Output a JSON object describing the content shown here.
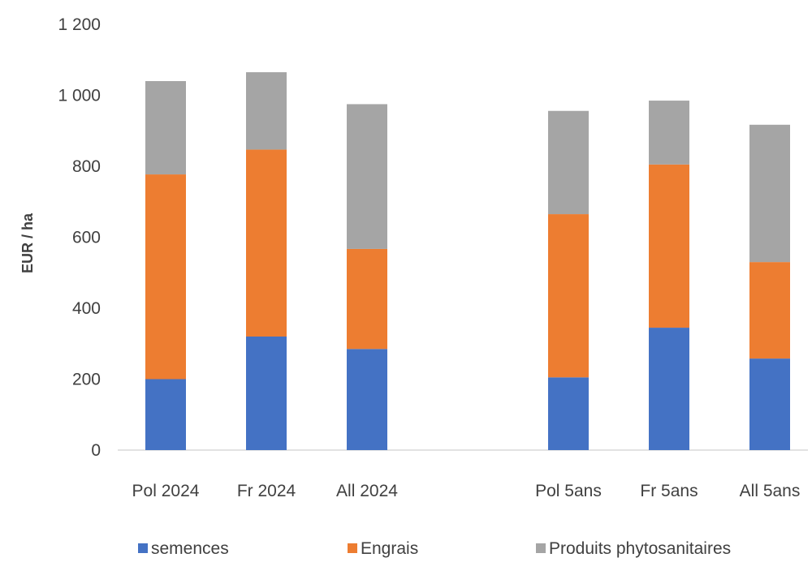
{
  "chart_data": {
    "type": "bar",
    "stacked": true,
    "title": "",
    "xlabel": "",
    "ylabel": "EUR / ha",
    "ylim": [
      0,
      1200
    ],
    "yticks": [
      0,
      200,
      400,
      600,
      800,
      1000,
      1200
    ],
    "ytick_labels": [
      "0",
      "200",
      "400",
      "600",
      "800",
      "1 000",
      "1 200"
    ],
    "grid": false,
    "legend": "bottom",
    "categories": [
      "Pol 2024",
      "Fr 2024",
      "All 2024",
      "Pol 5ans",
      "Fr 5ans",
      "All 5ans"
    ],
    "groups": [
      [
        0,
        1,
        2
      ],
      [
        3,
        4,
        5
      ]
    ],
    "series": [
      {
        "name": "semences",
        "color": "#4472C4",
        "values": [
          200,
          320,
          285,
          205,
          345,
          258
        ]
      },
      {
        "name": "Engrais",
        "color": "#ED7D31",
        "values": [
          577,
          527,
          282,
          460,
          460,
          272
        ]
      },
      {
        "name": "Produits phytosanitaires",
        "color": "#A5A5A5",
        "values": [
          263,
          218,
          408,
          291,
          180,
          387
        ]
      }
    ]
  }
}
